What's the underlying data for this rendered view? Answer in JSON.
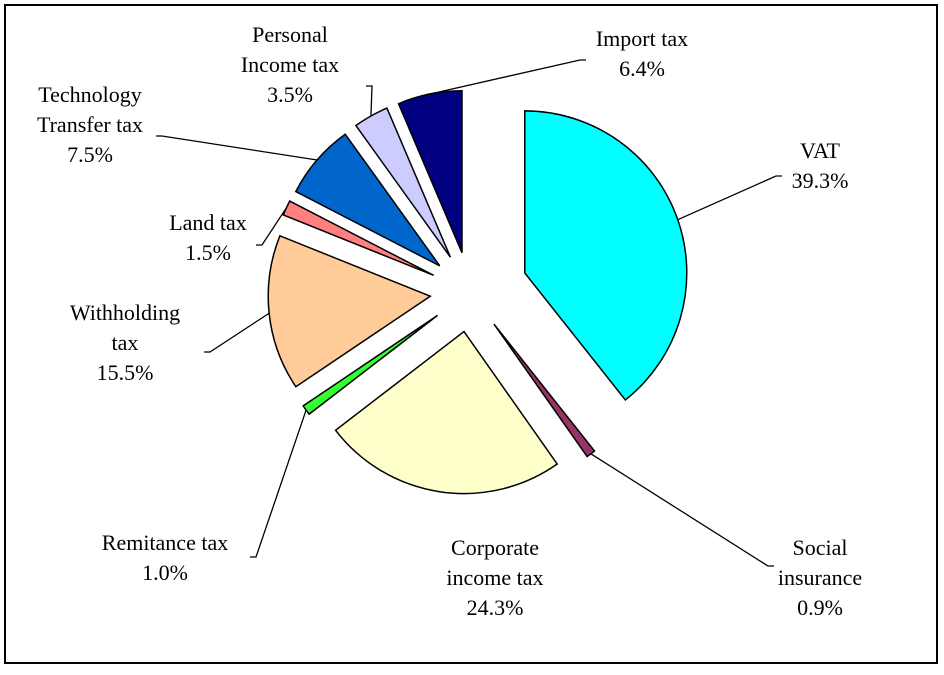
{
  "chart_data": {
    "type": "pie",
    "categories": [
      "VAT",
      "Social\ninsurance",
      "Corporate\nincome tax",
      "Remitance tax",
      "Withholding\ntax",
      "Land tax",
      "Technology\nTransfer tax",
      "Personal\nIncome tax",
      "Import tax"
    ],
    "values": [
      39.3,
      0.9,
      24.3,
      1.0,
      15.5,
      1.5,
      7.5,
      3.5,
      6.4
    ],
    "value_labels": [
      "39.3%",
      "0.9%",
      "24.3%",
      "1.0%",
      "15.5%",
      "1.5%",
      "7.5%",
      "3.5%",
      "6.4%"
    ],
    "colors": [
      "#00ffff",
      "#993366",
      "#ffffcc",
      "#33ff33",
      "#ffcc99",
      "#ff8080",
      "#0066cc",
      "#ccccff",
      "#000080"
    ]
  }
}
